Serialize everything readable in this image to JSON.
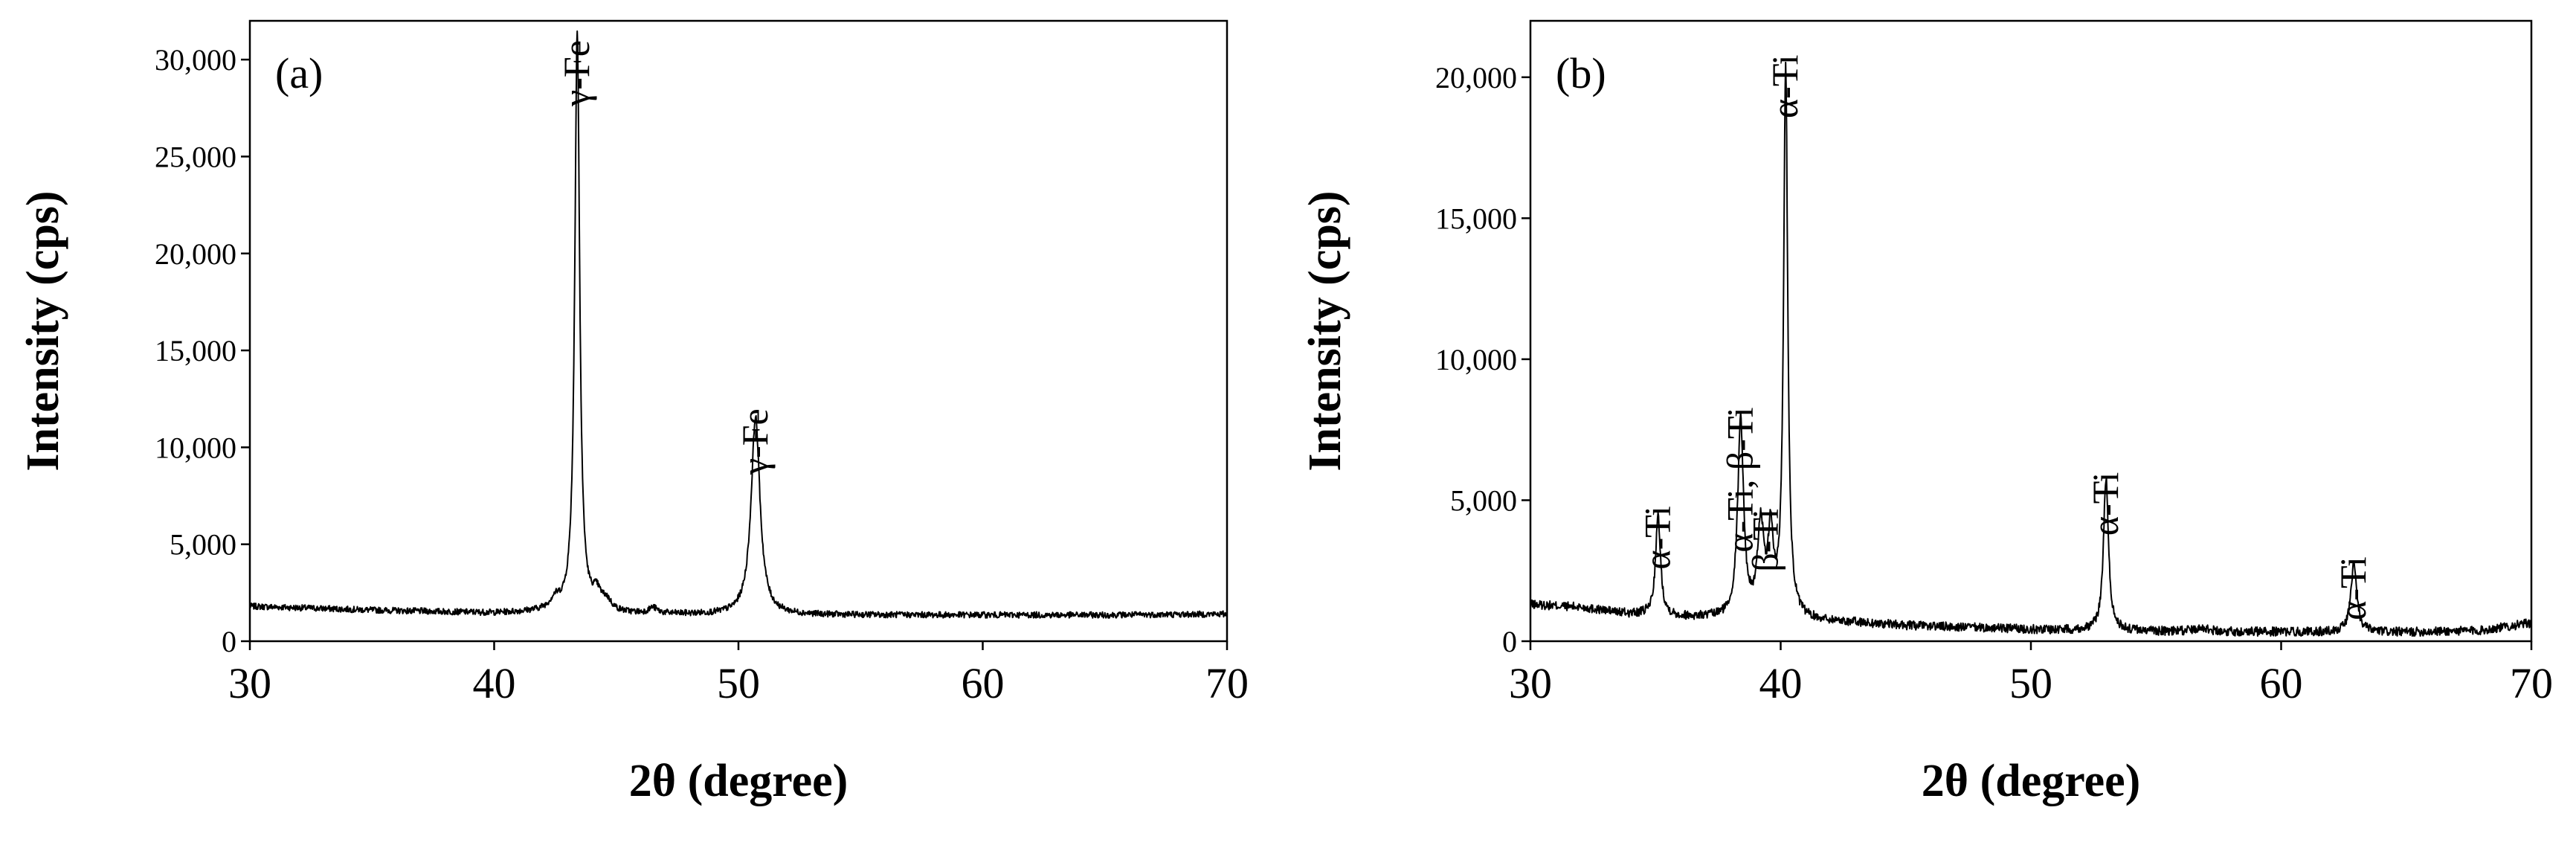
{
  "chart_data": [
    {
      "type": "line",
      "panel_label": "(a)",
      "xlabel": "2θ (degree)",
      "ylabel": "Intensity (cps)",
      "xlim": [
        30,
        70
      ],
      "ylim": [
        0,
        32000
      ],
      "xticks": [
        30,
        40,
        50,
        60,
        70
      ],
      "xtick_labels": [
        "30",
        "40",
        "50",
        "60",
        "70"
      ],
      "yticks": [
        0,
        5000,
        10000,
        15000,
        20000,
        25000,
        30000
      ],
      "ytick_labels": [
        "0",
        "5,000",
        "10,000",
        "15,000",
        "20,000",
        "25,000",
        "30,000"
      ],
      "grid": false,
      "line_color": "#000000",
      "baseline": [
        [
          30,
          1800
        ],
        [
          35,
          1600
        ],
        [
          40,
          1450
        ],
        [
          42,
          1500
        ],
        [
          45,
          1400
        ],
        [
          50,
          1350
        ],
        [
          55,
          1350
        ],
        [
          60,
          1350
        ],
        [
          65,
          1350
        ],
        [
          70,
          1400
        ]
      ],
      "peaks": [
        {
          "x": 42.5,
          "y": 500,
          "w": 0.25
        },
        {
          "x": 43.4,
          "y": 30000,
          "w": 0.12
        },
        {
          "x": 44.2,
          "y": 800,
          "w": 0.2
        },
        {
          "x": 44.6,
          "y": 500,
          "w": 0.25
        },
        {
          "x": 46.5,
          "y": 300,
          "w": 0.2
        },
        {
          "x": 50.7,
          "y": 10200,
          "w": 0.22
        }
      ],
      "annotations": [
        {
          "text": "γ-Fe",
          "x": 43.4,
          "y": 31000
        },
        {
          "text": "γ-Fe",
          "x": 50.7,
          "y": 12000
        }
      ]
    },
    {
      "type": "line",
      "panel_label": "(b)",
      "xlabel": "2θ (degree)",
      "ylabel": "Intensity (cps)",
      "xlim": [
        30,
        70
      ],
      "ylim": [
        0,
        22000
      ],
      "xticks": [
        30,
        40,
        50,
        60,
        70
      ],
      "xtick_labels": [
        "30",
        "40",
        "50",
        "60",
        "70"
      ],
      "yticks": [
        0,
        5000,
        10000,
        15000,
        20000
      ],
      "ytick_labels": [
        "0",
        "5,000",
        "10,000",
        "15,000",
        "20,000"
      ],
      "grid": false,
      "line_color": "#000000",
      "baseline": [
        [
          30,
          1300
        ],
        [
          32,
          1200
        ],
        [
          34,
          950
        ],
        [
          36,
          850
        ],
        [
          38,
          800
        ],
        [
          40,
          750
        ],
        [
          42,
          700
        ],
        [
          45,
          550
        ],
        [
          50,
          420
        ],
        [
          55,
          350
        ],
        [
          60,
          330
        ],
        [
          65,
          320
        ],
        [
          68,
          380
        ],
        [
          70,
          650
        ]
      ],
      "peaks": [
        {
          "x": 35.1,
          "y": 3500,
          "w": 0.12
        },
        {
          "x": 38.4,
          "y": 7000,
          "w": 0.14
        },
        {
          "x": 39.2,
          "y": 3200,
          "w": 0.15
        },
        {
          "x": 39.6,
          "y": 2800,
          "w": 0.13
        },
        {
          "x": 40.2,
          "y": 19500,
          "w": 0.1
        },
        {
          "x": 53.0,
          "y": 5400,
          "w": 0.12
        },
        {
          "x": 56.8,
          "y": 150,
          "w": 0.3
        },
        {
          "x": 62.9,
          "y": 2400,
          "w": 0.14
        }
      ],
      "annotations": [
        {
          "text": "α-Ti",
          "x": 35.1,
          "y": 4800
        },
        {
          "text": "α-Ti, β-Ti",
          "x": 38.4,
          "y": 8300
        },
        {
          "text": "β-Ti",
          "x": 39.4,
          "y": 4700
        },
        {
          "text": "α-Ti",
          "x": 40.2,
          "y": 20800
        },
        {
          "text": "α-Ti",
          "x": 53.0,
          "y": 6000
        },
        {
          "text": "α-Ti",
          "x": 62.9,
          "y": 3000
        }
      ]
    }
  ]
}
